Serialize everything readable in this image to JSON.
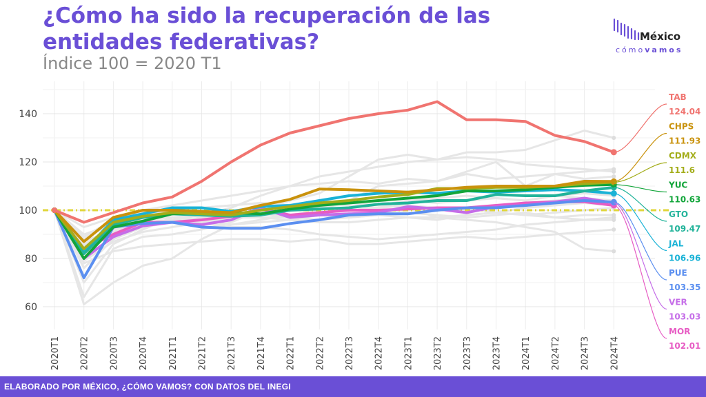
{
  "header": {
    "title": "¿Cómo ha sido la recuperación de las entidades federativas?",
    "subtitle": "Índice 100 = 2020 T1"
  },
  "logo": {
    "top": "México",
    "bottom_a": "cómo",
    "bottom_b": "vamos"
  },
  "footer": {
    "text": "ELABORADO POR MÉXICO, ¿CÓMO VAMOS? CON DATOS DEL INEGI"
  },
  "colors": {
    "accent": "#6a4fd6",
    "background_series": "#e6e6e6",
    "reference_line": "#e0d63a"
  },
  "chart_data": {
    "type": "line",
    "x": [
      "2020T1",
      "2020T2",
      "2020T3",
      "2020T4",
      "2021T1",
      "2021T2",
      "2021T3",
      "2021T4",
      "2022T1",
      "2022T2",
      "2022T3",
      "2022T4",
      "2023T1",
      "2023T2",
      "2023T3",
      "2023T4",
      "2024T1",
      "2024T2",
      "2024T3",
      "2024T4"
    ],
    "ylim": [
      55,
      150
    ],
    "yticks": [
      60,
      80,
      100,
      120,
      140
    ],
    "reference_line": 100,
    "grid": true,
    "series": [
      {
        "name": "TAB",
        "end_label": "124.04",
        "color": "#f07470",
        "values": [
          100,
          95,
          99,
          103,
          105.5,
          112,
          120,
          127,
          132,
          135,
          138,
          140,
          141.5,
          145,
          137.5,
          137.5,
          136.8,
          131,
          128.5,
          124.04
        ]
      },
      {
        "name": "CHPS",
        "end_label": "111.93",
        "color": "#c9920c",
        "values": [
          100,
          87,
          97,
          100,
          100,
          99.5,
          99,
          102,
          104.5,
          108.8,
          108.5,
          108,
          107.5,
          108.5,
          109.5,
          110,
          110,
          110,
          112,
          111.93
        ]
      },
      {
        "name": "CDMX",
        "end_label": "111.6",
        "color": "#a3ad1a",
        "values": [
          100,
          84,
          95,
          97.5,
          99,
          98.5,
          98,
          100,
          101.5,
          103,
          104,
          105.5,
          106.5,
          109,
          109,
          109.5,
          109.5,
          110,
          111,
          111.6
        ]
      },
      {
        "name": "YUC",
        "end_label": "110.63",
        "color": "#12a53a",
        "values": [
          100,
          80,
          93,
          95.5,
          98.5,
          99,
          99,
          98.5,
          100.5,
          102,
          103,
          104,
          105,
          106,
          108,
          108,
          108.5,
          109.5,
          110.3,
          110.63
        ]
      },
      {
        "name": "GTO",
        "end_label": "109.47",
        "color": "#22b39a",
        "values": [
          100,
          82,
          94,
          97,
          98.5,
          98,
          97.5,
          98,
          100,
          100.5,
          101,
          102.5,
          103,
          104,
          104,
          106.5,
          106,
          106,
          108,
          109.47
        ]
      },
      {
        "name": "JAL",
        "end_label": "106.96",
        "color": "#19b2d6",
        "values": [
          100,
          83,
          96,
          98.5,
          101,
          101,
          99.5,
          101.5,
          102,
          104,
          106,
          107,
          107.5,
          107,
          108,
          107.5,
          108,
          108.5,
          108,
          106.96
        ]
      },
      {
        "name": "PUE",
        "end_label": "103.35",
        "color": "#5b8ff0",
        "values": [
          100,
          72,
          93,
          94.5,
          95,
          93,
          92.5,
          92.5,
          94.5,
          96,
          98,
          98.5,
          98.5,
          100,
          101,
          101,
          102,
          103,
          104,
          103.35
        ]
      },
      {
        "name": "VER",
        "end_label": "103.03",
        "color": "#c56de8",
        "values": [
          100,
          80,
          89,
          93.5,
          95,
          94,
          96,
          101,
          97,
          98,
          98.5,
          99,
          101.5,
          100.5,
          99,
          101.5,
          102,
          103.5,
          105,
          103.03
        ]
      },
      {
        "name": "MOR",
        "end_label": "102.01",
        "color": "#e75cc4",
        "values": [
          100,
          84,
          90,
          95,
          95,
          96,
          97.5,
          100.5,
          98,
          99,
          100,
          100,
          100.5,
          101,
          101,
          102,
          103,
          103.5,
          103.5,
          102.01
        ]
      }
    ],
    "background_series": [
      [
        100,
        61,
        70,
        77,
        80,
        88,
        94,
        96,
        98,
        100,
        104,
        110,
        111,
        112,
        116,
        120,
        110,
        115,
        113,
        114
      ],
      [
        100,
        64,
        84,
        89,
        90,
        92,
        95,
        100,
        104,
        107,
        114,
        121,
        123,
        121,
        124,
        124,
        125,
        129,
        133,
        130
      ],
      [
        100,
        70,
        86,
        92,
        97,
        98,
        101,
        106,
        110,
        114,
        116,
        118,
        120,
        121,
        122,
        121,
        119,
        118,
        117,
        116
      ],
      [
        100,
        76,
        88,
        93,
        95,
        96,
        94,
        95,
        96,
        98,
        97,
        99,
        100,
        101,
        101,
        99,
        98,
        97,
        96,
        96
      ],
      [
        100,
        88,
        95,
        97,
        97,
        98,
        97,
        97,
        96,
        95,
        95,
        96,
        97,
        97,
        96,
        95,
        93,
        91,
        84,
        83
      ],
      [
        100,
        82,
        91,
        95,
        96,
        95,
        93,
        93,
        92,
        90,
        89,
        88,
        89,
        90,
        91,
        92,
        94,
        95,
        96,
        97
      ],
      [
        100,
        85,
        93,
        98,
        100,
        101,
        102,
        103,
        102,
        101,
        103,
        104,
        101,
        97,
        98,
        99,
        101,
        102,
        103,
        102
      ],
      [
        100,
        79,
        87,
        91,
        93,
        95,
        97,
        99,
        101,
        103,
        102,
        101,
        104,
        105,
        106,
        105,
        104,
        106,
        107,
        106
      ],
      [
        100,
        89,
        96,
        100,
        102,
        104,
        106,
        108,
        110,
        111,
        112,
        111,
        113,
        112,
        115,
        113,
        114,
        115,
        116,
        117
      ],
      [
        100,
        90,
        94,
        96,
        97,
        96,
        97,
        98,
        97,
        96,
        97,
        98,
        97,
        96,
        98,
        99,
        98,
        99,
        100,
        101
      ],
      [
        100,
        87,
        92,
        95,
        96,
        98,
        99,
        100,
        101,
        99,
        100,
        101,
        102,
        101,
        100,
        101,
        103,
        104,
        105,
        104
      ],
      [
        100,
        78,
        83,
        85,
        86,
        87,
        88,
        88,
        87,
        88,
        86,
        86,
        87,
        88,
        89,
        88,
        89,
        90,
        91,
        92
      ],
      [
        100,
        93,
        97,
        99,
        100,
        101,
        102,
        103,
        102,
        101,
        103,
        102,
        104,
        103,
        104,
        105,
        104,
        106,
        105,
        104
      ],
      [
        100,
        86,
        91,
        94,
        95,
        97,
        98,
        99,
        97,
        98,
        97,
        98,
        99,
        98,
        97,
        98,
        99,
        97,
        98,
        98
      ]
    ]
  }
}
